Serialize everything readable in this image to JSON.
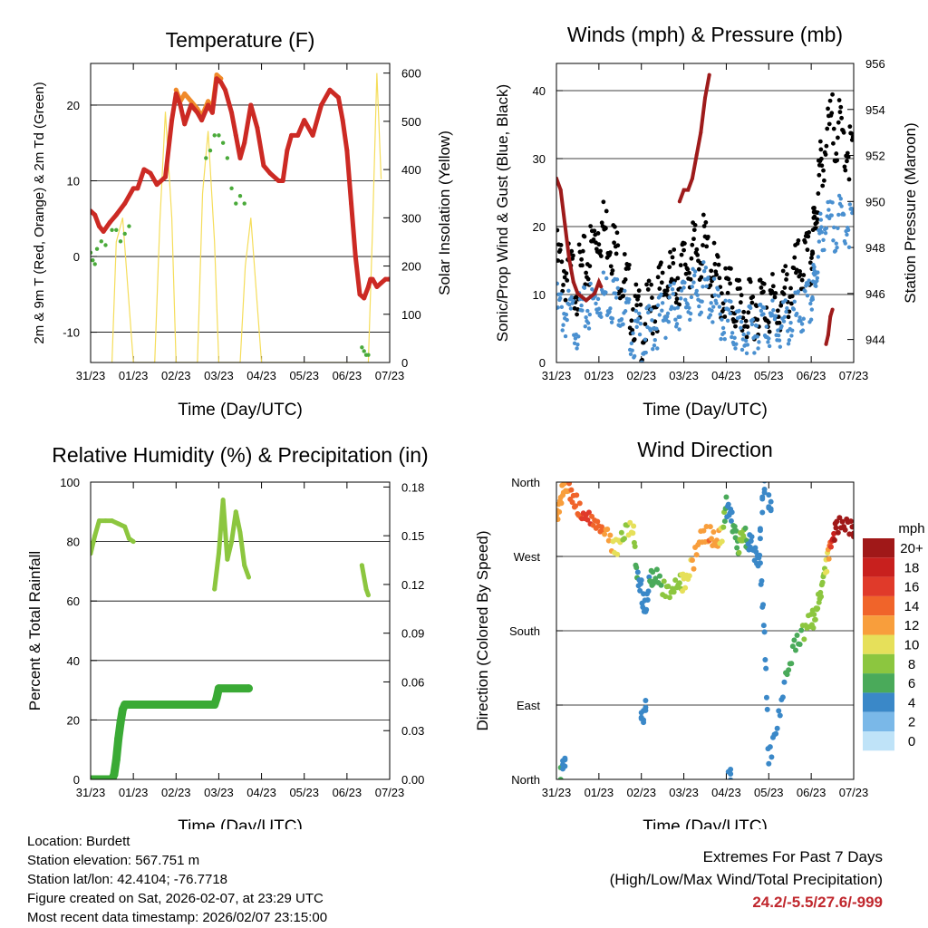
{
  "colors": {
    "temp_red": "#cc2a24",
    "temp_orange": "#f08a2a",
    "dewpoint_green": "#4aaa3a",
    "solar_yellow": "#f5dd5a",
    "wind_blue": "#4a90d0",
    "gust_black": "#000000",
    "pressure_maroon": "#9e1b1b",
    "rh_green": "#8cc63f",
    "precip_green": "#3aaa35",
    "extremes_red": "#c0272d"
  },
  "chart_data": [
    {
      "id": "temperature",
      "type": "line",
      "title": "Temperature (F)",
      "xlabel": "Time (Day/UTC)",
      "ylabel": "2m & 9m T (Red, Orange) & 2m Td (Green)",
      "y2label": "Solar Insolation (Yellow)",
      "x_ticks": [
        "31/23",
        "01/23",
        "02/23",
        "03/23",
        "04/23",
        "05/23",
        "06/23",
        "07/23"
      ],
      "xlim": [
        0,
        7
      ],
      "ylim": [
        -14,
        25.5
      ],
      "y_ticks": [
        -10,
        0,
        10,
        20
      ],
      "y_grid": [
        -10,
        0,
        10,
        20
      ],
      "y2lim": [
        0,
        620
      ],
      "y2_ticks": [
        0,
        100,
        200,
        300,
        400,
        500,
        600
      ],
      "series": [
        {
          "name": "2m T",
          "color_key": "temp_red",
          "x": [
            0,
            0.1,
            0.2,
            0.3,
            0.45,
            0.6,
            0.8,
            1.0,
            1.1,
            1.25,
            1.4,
            1.55,
            1.75,
            1.9,
            2.0,
            2.1,
            2.2,
            2.35,
            2.5,
            2.6,
            2.75,
            2.85,
            2.95,
            3.05,
            3.15,
            3.3,
            3.4,
            3.5,
            3.6,
            3.75,
            3.9,
            4.05,
            4.2,
            4.4,
            4.5,
            4.6,
            4.7,
            4.85,
            5.0,
            5.2,
            5.4,
            5.6,
            5.8,
            5.9,
            6.0,
            6.1,
            6.2,
            6.3,
            6.4,
            6.5,
            6.55,
            6.6,
            6.7,
            6.8,
            6.9,
            6.98
          ],
          "y": [
            6,
            5.5,
            4,
            3.3,
            4.5,
            5.5,
            7,
            9,
            9,
            11.5,
            11,
            9.5,
            10.5,
            18,
            21.5,
            20,
            17.5,
            20,
            19,
            18,
            20,
            19,
            23.5,
            23,
            22,
            19,
            16,
            13,
            15,
            20,
            17,
            12,
            11,
            10,
            10,
            14,
            16,
            16,
            18,
            16,
            20,
            22,
            21,
            18,
            14,
            7,
            0,
            -5,
            -5.5,
            -4,
            -3,
            -3,
            -4,
            -3.5,
            -3,
            -3
          ]
        },
        {
          "name": "9m T",
          "color_key": "temp_orange",
          "x": [
            2.0,
            2.1,
            2.2,
            2.35,
            2.5,
            2.6,
            2.75,
            2.85,
            2.95,
            3.05
          ],
          "y": [
            22,
            20.5,
            21.5,
            20.5,
            19.5,
            18.5,
            20.5,
            19.5,
            24,
            23.5
          ]
        },
        {
          "name": "2m Td",
          "color_key": "dewpoint_green",
          "x": [
            0,
            0.05,
            0.1,
            0.15,
            0.25,
            0.35,
            0.5,
            0.6,
            0.7,
            0.8,
            0.9,
            2.7,
            2.8,
            2.9,
            3.0,
            3.1,
            3.2,
            3.3,
            3.4,
            3.5,
            3.6,
            6.35,
            6.4,
            6.45,
            6.5
          ],
          "y": [
            0.5,
            -0.5,
            -1,
            1,
            2,
            1.5,
            3.5,
            3.5,
            2,
            3,
            4,
            13,
            14,
            16,
            16,
            15,
            13,
            9,
            7,
            8,
            7,
            -12,
            -12.5,
            -13,
            -13
          ]
        },
        {
          "name": "Solar Insolation",
          "color_key": "solar_yellow",
          "axis": "y2",
          "x": [
            0.5,
            0.6,
            0.75,
            0.9,
            1.0,
            1.5,
            1.62,
            1.75,
            1.9,
            2.0,
            2.5,
            2.62,
            2.75,
            2.9,
            3.0,
            3.5,
            3.62,
            3.75,
            3.9,
            4.0,
            6.5,
            6.6,
            6.7,
            6.8
          ],
          "y": [
            0,
            250,
            300,
            120,
            0,
            0,
            290,
            520,
            300,
            0,
            0,
            350,
            480,
            250,
            0,
            0,
            200,
            300,
            120,
            0,
            0,
            280,
            600,
            380
          ]
        }
      ]
    },
    {
      "id": "winds",
      "type": "scatter",
      "title": "Winds (mph) & Pressure (mb)",
      "xlabel": "Time (Day/UTC)",
      "ylabel": "Sonic/Prop Wind & Gust (Blue, Black)",
      "y2label": "Station Pressure (Maroon)",
      "x_ticks": [
        "31/23",
        "01/23",
        "02/23",
        "03/23",
        "04/23",
        "05/23",
        "06/23",
        "07/23"
      ],
      "xlim": [
        0,
        7
      ],
      "ylim": [
        0,
        44
      ],
      "y_ticks": [
        0,
        10,
        20,
        30,
        40
      ],
      "y_grid": [
        10,
        20,
        30,
        40
      ],
      "y2lim": [
        943,
        956
      ],
      "y2_ticks": [
        944,
        946,
        948,
        950,
        952,
        954,
        956
      ],
      "series": [
        {
          "name": "Wind",
          "color_key": "wind_blue",
          "x": [
            0,
            0.25,
            0.5,
            0.75,
            1.0,
            1.25,
            1.5,
            1.75,
            2.0,
            2.25,
            2.5,
            2.75,
            3.0,
            3.25,
            3.5,
            3.75,
            4.0,
            4.25,
            4.5,
            4.75,
            5.0,
            5.25,
            5.5,
            5.75,
            6.0,
            6.1,
            6.25,
            6.5,
            6.75,
            7.0
          ],
          "y": [
            8,
            7,
            6,
            8,
            10,
            10,
            9,
            5,
            3,
            5,
            7,
            8,
            9,
            10,
            11,
            8,
            6,
            5,
            4,
            6,
            6,
            5,
            6,
            7,
            9,
            13,
            20,
            20,
            21,
            20
          ]
        },
        {
          "name": "Gust",
          "color_key": "gust_black",
          "x": [
            0,
            0.25,
            0.5,
            0.75,
            1.0,
            1.25,
            1.5,
            1.75,
            2.0,
            2.25,
            2.5,
            2.75,
            3.0,
            3.25,
            3.5,
            3.75,
            4.0,
            4.25,
            4.5,
            4.75,
            5.0,
            5.25,
            5.5,
            5.75,
            6.0,
            6.1,
            6.25,
            6.5,
            6.75,
            7.0
          ],
          "y": [
            15,
            13,
            12,
            15,
            20,
            19,
            14,
            9,
            5,
            8,
            11,
            12,
            14,
            16,
            17,
            12,
            10,
            9,
            7,
            9,
            9,
            8,
            11,
            14,
            15,
            22,
            30,
            35,
            33,
            30
          ]
        },
        {
          "name": "Station Pressure",
          "color_key": "pressure_maroon",
          "axis": "y2",
          "x": [
            0,
            0.1,
            0.2,
            0.3,
            0.4,
            0.5,
            0.7,
            0.9,
            1.0,
            1.05,
            2.9,
            3.0,
            3.1,
            3.2,
            3.3,
            3.4,
            3.5,
            3.6,
            6.35,
            6.4,
            6.45,
            6.5
          ],
          "y": [
            951,
            950.5,
            949,
            947.5,
            946.5,
            946,
            945.7,
            946,
            946.5,
            946.3,
            950,
            950.5,
            950.5,
            951,
            952,
            953,
            954.5,
            955.5,
            943.8,
            944.2,
            945,
            945.3
          ]
        }
      ]
    },
    {
      "id": "humidity",
      "type": "line",
      "title": "Relative Humidity (%) & Precipitation (in)",
      "xlabel": "Time (Day/UTC)",
      "ylabel": "Percent & Total Rainfall",
      "x_ticks": [
        "31/23",
        "01/23",
        "02/23",
        "03/23",
        "04/23",
        "05/23",
        "06/23",
        "07/23"
      ],
      "xlim": [
        0,
        7
      ],
      "ylim": [
        0,
        100
      ],
      "y_ticks": [
        0,
        20,
        40,
        60,
        80,
        100
      ],
      "y_grid": [
        20,
        40,
        60,
        80
      ],
      "y2lim": [
        0,
        0.183
      ],
      "y2_ticks": [
        "0.00",
        "0.03",
        "0.06",
        "0.09",
        "0.12",
        "0.15",
        "0.18"
      ],
      "series": [
        {
          "name": "Relative Humidity",
          "color_key": "rh_green",
          "x": [
            0,
            0.1,
            0.2,
            0.35,
            0.5,
            0.65,
            0.8,
            0.9,
            1.0,
            2.9,
            3.0,
            3.1,
            3.15,
            3.2,
            3.3,
            3.4,
            3.5,
            3.6,
            3.7,
            6.35,
            6.45,
            6.5
          ],
          "y": [
            76,
            82,
            87,
            87,
            87,
            86,
            85,
            81,
            80,
            64,
            76,
            94,
            84,
            74,
            80,
            90,
            83,
            72,
            68,
            72,
            64,
            62
          ]
        },
        {
          "name": "Total Precipitation",
          "color_key": "precip_green",
          "x": [
            0,
            0.5,
            0.55,
            0.6,
            0.65,
            0.7,
            0.75,
            0.8,
            2.9,
            2.95,
            3.0,
            3.7
          ],
          "y": [
            0,
            0,
            0.003,
            0.012,
            0.025,
            0.035,
            0.043,
            0.046,
            0.046,
            0.05,
            0.056,
            0.056
          ]
        }
      ]
    },
    {
      "id": "direction",
      "type": "scatter",
      "title": "Wind Direction",
      "xlabel": "Time (Day/UTC)",
      "ylabel": "Direction (Colored By Speed)",
      "x_ticks": [
        "31/23",
        "01/23",
        "02/23",
        "03/23",
        "04/23",
        "05/23",
        "06/23",
        "07/23"
      ],
      "xlim": [
        0,
        7
      ],
      "ylim": [
        0,
        360
      ],
      "y_ticks": [
        "North",
        "East",
        "South",
        "West",
        "North"
      ],
      "y_grid": [
        90,
        180,
        270
      ],
      "colorbar_title": "mph",
      "colorbar_labels": [
        "20+",
        "18",
        "16",
        "14",
        "12",
        "10",
        "8",
        "6",
        "4",
        "2",
        "0"
      ],
      "colorbar_colors": [
        "#a01818",
        "#c8201e",
        "#e03a2a",
        "#f0642a",
        "#f89e3c",
        "#e6e05a",
        "#8cc63f",
        "#4aaa5a",
        "#3a88c8",
        "#7ab8e8",
        "#bfe3f8"
      ],
      "series": [
        {
          "name": "Direction",
          "x": [
            0,
            0.1,
            0.2,
            0.3,
            0.45,
            0.6,
            0.8,
            1.0,
            1.2,
            1.4,
            1.6,
            1.8,
            1.9,
            2.0,
            2.1,
            2.2,
            2.3,
            2.5,
            2.7,
            2.9,
            3.0,
            3.2,
            3.4,
            3.6,
            3.75,
            3.9,
            4.0,
            4.1,
            4.2,
            4.3,
            4.4,
            4.5,
            4.6,
            4.7,
            4.8,
            4.9,
            5.0,
            5.2,
            5.4,
            5.6,
            5.8,
            6.0,
            6.1,
            6.2,
            6.3,
            6.4,
            6.5,
            6.6,
            6.8,
            7.0
          ],
          "y": [
            320,
            340,
            355,
            350,
            335,
            320,
            315,
            305,
            295,
            280,
            300,
            310,
            250,
            230,
            200,
            240,
            250,
            235,
            230,
            235,
            240,
            260,
            295,
            300,
            285,
            300,
            330,
            320,
            300,
            280,
            300,
            285,
            285,
            270,
            260,
            180,
            20,
            70,
            120,
            160,
            180,
            190,
            200,
            220,
            250,
            270,
            290,
            310,
            310,
            305
          ],
          "speed": [
            11,
            12,
            12,
            13,
            14,
            15,
            15,
            14,
            12,
            10,
            8,
            10,
            5,
            4,
            3,
            5,
            6,
            7,
            7,
            8,
            10,
            11,
            12,
            13,
            12,
            10,
            5,
            4,
            6,
            7,
            8,
            5,
            4,
            3,
            3,
            3,
            3,
            4,
            5,
            6,
            7,
            8,
            7,
            7,
            8,
            11,
            18,
            20,
            20,
            20
          ]
        },
        {
          "name": "Direction (secondary)",
          "x": [
            0.1,
            0.15,
            0.2,
            2.0,
            2.05,
            2.1,
            4.05,
            4.1,
            4.8,
            4.85,
            4.9,
            5.0,
            5.05
          ],
          "y": [
            5,
            15,
            20,
            75,
            80,
            90,
            5,
            10,
            300,
            330,
            350,
            340,
            330
          ],
          "speed": [
            5,
            4,
            3,
            4,
            4,
            4,
            3,
            3,
            4,
            4,
            3,
            3,
            3
          ]
        }
      ]
    }
  ],
  "footer": {
    "location": "Location: Burdett",
    "elevation": "Station elevation: 567.751 m",
    "latlon": "Station lat/lon: 42.4104; -76.7718",
    "created": "Figure created on Sat, 2026-02-07, at 23:29 UTC",
    "recent": "Most recent data timestamp: 2026/02/07 23:15:00",
    "extremes_title": "Extremes For Past 7 Days",
    "extremes_sub": "(High/Low/Max Wind/Total Precipitation)",
    "extremes_values": "24.2/-5.5/27.6/-999"
  }
}
